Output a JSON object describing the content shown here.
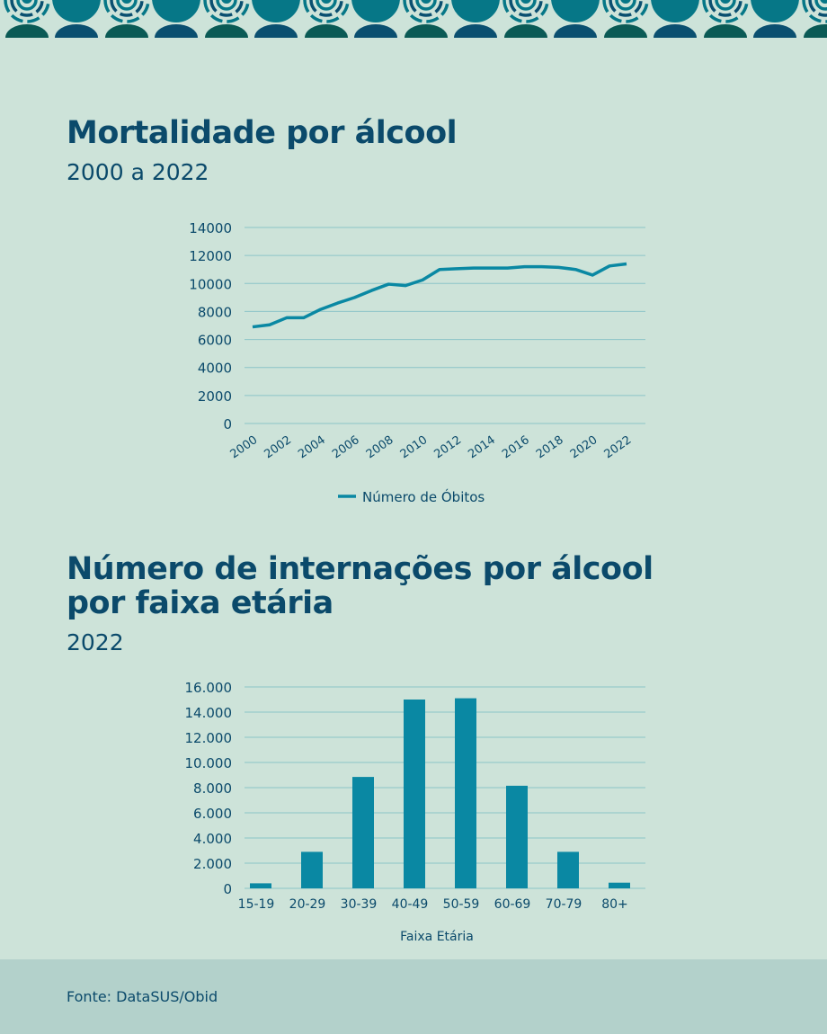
{
  "colors": {
    "background": "#cde3d9",
    "title": "#0b4a6b",
    "series": "#0a88a3",
    "grid": "#8cc4c8",
    "footer": "#b3d1cb",
    "band_teal": "#067787",
    "band_green": "#0a5a55",
    "band_blue": "#0a4f70"
  },
  "chart1": {
    "title": "Mortalidade por álcool",
    "subtitle": "2000 a 2022"
  },
  "chart2": {
    "title_line1": "Número de internações por álcool",
    "title_line2": "por faixa etária",
    "subtitle": "2022"
  },
  "footer": {
    "source": "Fonte: DataSUS/Obid"
  },
  "chart_data": [
    {
      "type": "line",
      "title": "Mortalidade por álcool",
      "subtitle": "2000 a 2022",
      "x": [
        2000,
        2001,
        2002,
        2003,
        2004,
        2005,
        2006,
        2007,
        2008,
        2009,
        2010,
        2011,
        2012,
        2013,
        2014,
        2015,
        2016,
        2017,
        2018,
        2019,
        2020,
        2021,
        2022
      ],
      "x_tick_labels": [
        "2000",
        "2002",
        "2004",
        "2006",
        "2008",
        "2010",
        "2012",
        "2014",
        "2016",
        "2018",
        "2020",
        "2022"
      ],
      "series": [
        {
          "name": "Número de Óbitos",
          "values": [
            6900,
            7050,
            7550,
            7550,
            8150,
            8600,
            9000,
            9500,
            9950,
            9850,
            10250,
            11000,
            11050,
            11100,
            11100,
            11100,
            11200,
            11200,
            11150,
            11000,
            10600,
            11250,
            11400
          ]
        }
      ],
      "ylim": [
        0,
        14000
      ],
      "y_tick_labels": [
        "0",
        "2000",
        "4000",
        "6000",
        "8000",
        "10000",
        "12000",
        "14000"
      ],
      "grid": true,
      "legend": "bottom"
    },
    {
      "type": "bar",
      "title": "Número de internações por álcool por faixa etária",
      "subtitle": "2022",
      "categories": [
        "15-19",
        "20-29",
        "30-39",
        "40-49",
        "50-59",
        "60-69",
        "70-79",
        "80+"
      ],
      "values": [
        400,
        2900,
        8850,
        15000,
        15100,
        8150,
        2900,
        450
      ],
      "xlabel": "Faixa Etária",
      "ylim": [
        0,
        16000
      ],
      "y_tick_labels": [
        "0",
        "2.000",
        "4.000",
        "6.000",
        "8.000",
        "10.000",
        "12.000",
        "14.000",
        "16.000"
      ],
      "grid": true
    }
  ]
}
